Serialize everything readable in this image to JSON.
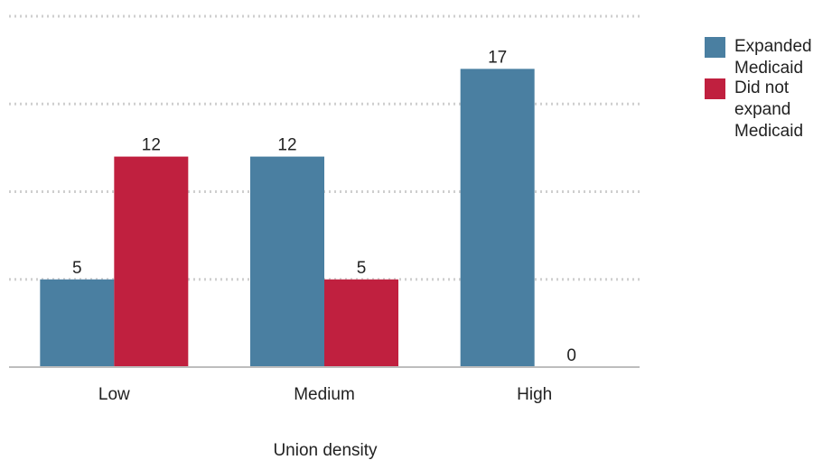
{
  "chart_data": {
    "type": "bar",
    "title": "",
    "xlabel": "Union density",
    "ylabel": "",
    "categories": [
      "Low",
      "Medium",
      "High"
    ],
    "series": [
      {
        "name": "Expanded Medicaid",
        "values": [
          5,
          12,
          17
        ],
        "color": "#4a7fa1"
      },
      {
        "name": "Did not expand Medicaid",
        "values": [
          12,
          5,
          0
        ],
        "color": "#c0203f"
      }
    ],
    "ylim": [
      0,
      20
    ],
    "grid": true,
    "data_labels": true,
    "legend_position": "right"
  },
  "legend": {
    "items": [
      {
        "label": "Expanded Medicaid",
        "color": "#4a7fa1"
      },
      {
        "label": "Did not expand Medicaid",
        "color": "#c0203f"
      }
    ]
  }
}
